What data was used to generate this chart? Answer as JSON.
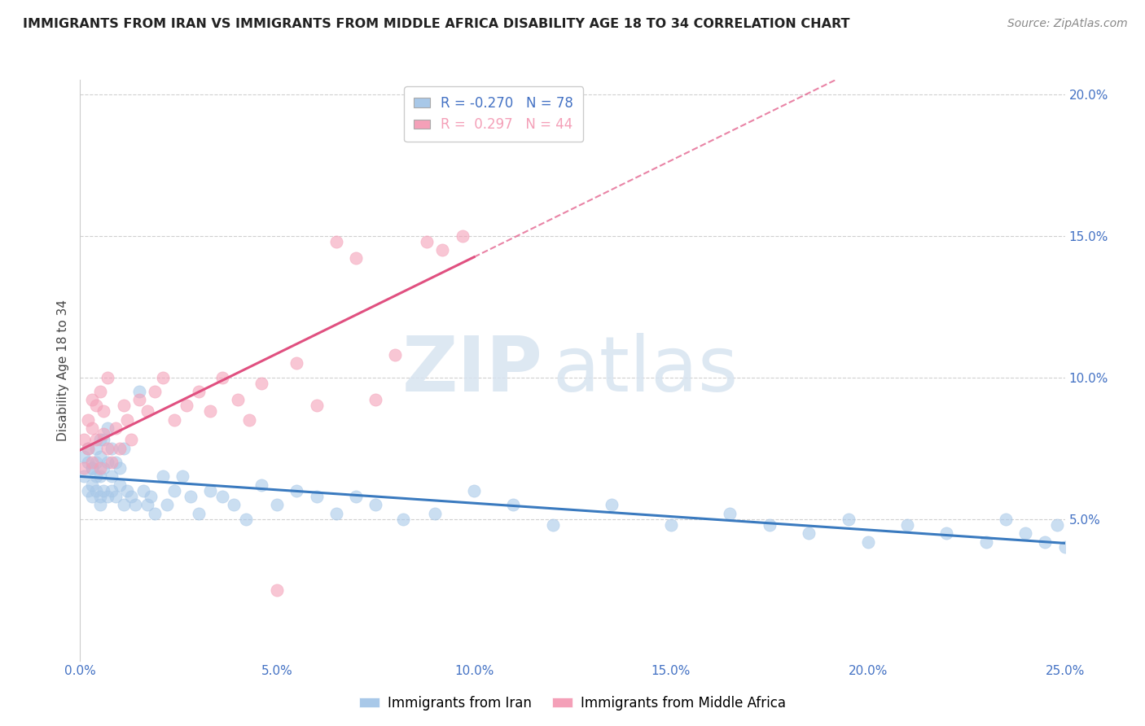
{
  "title": "IMMIGRANTS FROM IRAN VS IMMIGRANTS FROM MIDDLE AFRICA DISABILITY AGE 18 TO 34 CORRELATION CHART",
  "source": "Source: ZipAtlas.com",
  "ylabel": "Disability Age 18 to 34",
  "r_iran": -0.27,
  "n_iran": 78,
  "r_africa": 0.297,
  "n_africa": 44,
  "color_iran": "#a8c8e8",
  "color_africa": "#f4a0b8",
  "trendline_iran": "#3a7abf",
  "trendline_africa": "#e05080",
  "xmin": 0.0,
  "xmax": 0.25,
  "ymin": 0.0,
  "ymax": 0.205,
  "yticks": [
    0.05,
    0.1,
    0.15,
    0.2
  ],
  "xticks": [
    0.0,
    0.05,
    0.1,
    0.15,
    0.2,
    0.25
  ],
  "watermark_zip": "ZIP",
  "watermark_atlas": "atlas",
  "iran_x": [
    0.001,
    0.001,
    0.002,
    0.002,
    0.002,
    0.003,
    0.003,
    0.003,
    0.004,
    0.004,
    0.004,
    0.004,
    0.005,
    0.005,
    0.005,
    0.005,
    0.006,
    0.006,
    0.006,
    0.007,
    0.007,
    0.007,
    0.008,
    0.008,
    0.008,
    0.009,
    0.009,
    0.01,
    0.01,
    0.011,
    0.011,
    0.012,
    0.013,
    0.014,
    0.015,
    0.016,
    0.017,
    0.018,
    0.019,
    0.021,
    0.022,
    0.024,
    0.026,
    0.028,
    0.03,
    0.033,
    0.036,
    0.039,
    0.042,
    0.046,
    0.05,
    0.055,
    0.06,
    0.065,
    0.07,
    0.075,
    0.082,
    0.09,
    0.1,
    0.11,
    0.12,
    0.135,
    0.15,
    0.165,
    0.175,
    0.185,
    0.195,
    0.2,
    0.21,
    0.22,
    0.23,
    0.235,
    0.24,
    0.245,
    0.248,
    0.25,
    0.003,
    0.005
  ],
  "iran_y": [
    0.072,
    0.065,
    0.07,
    0.06,
    0.075,
    0.068,
    0.062,
    0.058,
    0.075,
    0.065,
    0.07,
    0.06,
    0.072,
    0.065,
    0.058,
    0.055,
    0.068,
    0.078,
    0.06,
    0.082,
    0.07,
    0.058,
    0.075,
    0.065,
    0.06,
    0.07,
    0.058,
    0.068,
    0.062,
    0.075,
    0.055,
    0.06,
    0.058,
    0.055,
    0.095,
    0.06,
    0.055,
    0.058,
    0.052,
    0.065,
    0.055,
    0.06,
    0.065,
    0.058,
    0.052,
    0.06,
    0.058,
    0.055,
    0.05,
    0.062,
    0.055,
    0.06,
    0.058,
    0.052,
    0.058,
    0.055,
    0.05,
    0.052,
    0.06,
    0.055,
    0.048,
    0.055,
    0.048,
    0.052,
    0.048,
    0.045,
    0.05,
    0.042,
    0.048,
    0.045,
    0.042,
    0.05,
    0.045,
    0.042,
    0.048,
    0.04,
    0.068,
    0.078
  ],
  "africa_x": [
    0.001,
    0.001,
    0.002,
    0.002,
    0.003,
    0.003,
    0.003,
    0.004,
    0.004,
    0.005,
    0.005,
    0.006,
    0.006,
    0.007,
    0.007,
    0.008,
    0.009,
    0.01,
    0.011,
    0.012,
    0.013,
    0.015,
    0.017,
    0.019,
    0.021,
    0.024,
    0.027,
    0.03,
    0.033,
    0.036,
    0.04,
    0.043,
    0.046,
    0.05,
    0.055,
    0.06,
    0.065,
    0.07,
    0.075,
    0.08,
    0.088,
    0.092,
    0.097,
    0.1
  ],
  "africa_y": [
    0.068,
    0.078,
    0.075,
    0.085,
    0.07,
    0.082,
    0.092,
    0.078,
    0.09,
    0.068,
    0.095,
    0.08,
    0.088,
    0.075,
    0.1,
    0.07,
    0.082,
    0.075,
    0.09,
    0.085,
    0.078,
    0.092,
    0.088,
    0.095,
    0.1,
    0.085,
    0.09,
    0.095,
    0.088,
    0.1,
    0.092,
    0.085,
    0.098,
    0.025,
    0.105,
    0.09,
    0.148,
    0.142,
    0.092,
    0.108,
    0.148,
    0.145,
    0.15,
    0.195
  ]
}
